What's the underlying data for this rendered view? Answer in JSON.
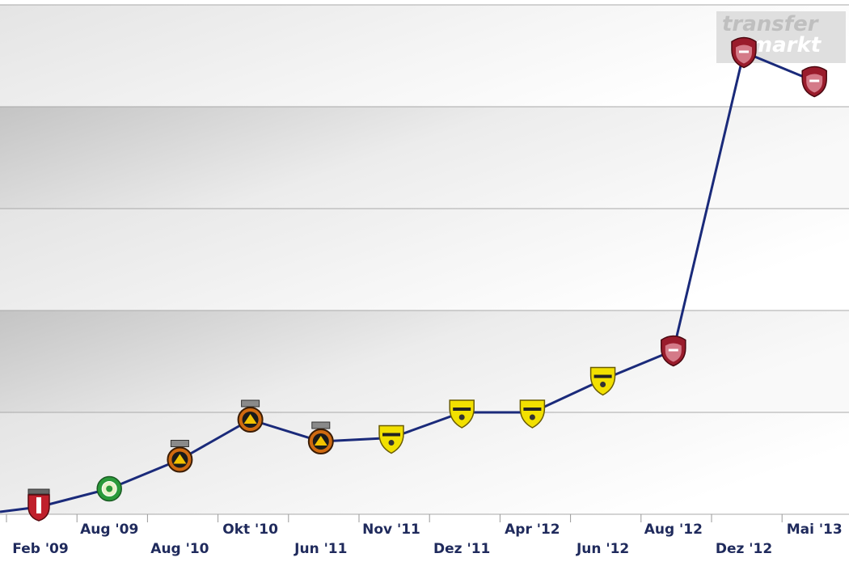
{
  "chart_data": {
    "type": "line",
    "title": "",
    "xlabel": "",
    "ylabel": "",
    "categories": [
      "Feb '09",
      "Aug '09",
      "Aug '10",
      "Okt '10",
      "Jun '11",
      "Nov '11",
      "Dez '11",
      "Apr '12",
      "Jun '12",
      "Aug '12",
      "Dez '12",
      "Mai '13"
    ],
    "values": [
      10,
      35,
      75,
      130,
      100,
      105,
      140,
      140,
      185,
      225,
      635,
      595
    ],
    "ylim": [
      0,
      700
    ],
    "grid": true,
    "legend": "none",
    "line_color": "#1a2a7a",
    "club_badges": [
      "braga",
      "vitoria-setubal",
      "rio-ave",
      "rio-ave",
      "rio-ave",
      "brasov",
      "brasov",
      "brasov",
      "brasov",
      "cfr-cluj",
      "cfr-cluj",
      "cfr-cluj"
    ],
    "badge_colors": {
      "braga": "#c0202c",
      "vitoria-setubal": "#2a9a3a",
      "rio-ave": "#d06a10",
      "brasov": "#f2e000",
      "cfr-cluj": "#9a1c2c"
    }
  },
  "watermark": {
    "line1": "transfer",
    "line2": "markt"
  }
}
